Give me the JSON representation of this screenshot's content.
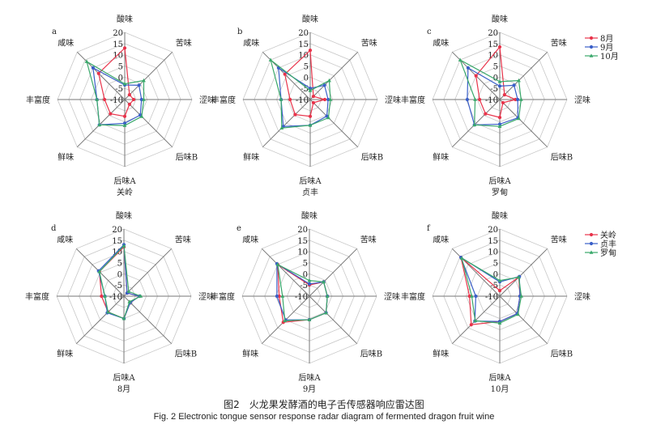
{
  "caption_cn": "图2　火龙果发酵酒的电子舌传感器响应雷达图",
  "caption_en": "Fig. 2 Electronic tongue sensor response radar diagram of fermented dragon fruit wine",
  "colors": {
    "red": "#e8334a",
    "blue": "#3a5fc8",
    "green": "#3aa86b"
  },
  "chart_data": [
    {
      "type": "radar",
      "panel": "a",
      "title": "关岭",
      "axes": [
        "酸味",
        "苦味",
        "涩味",
        "后味B",
        "后味A",
        "鲜味",
        "丰富度",
        "咸味"
      ],
      "range": [
        -10,
        20
      ],
      "ticks": [
        "-10",
        "-5",
        "0",
        "5",
        "10",
        "15",
        "20"
      ],
      "grid": true,
      "series": [
        {
          "name": "8月",
          "values": [
            13,
            -7,
            -6,
            -7,
            -2.5,
            -1,
            -1,
            6.5
          ]
        },
        {
          "name": "9月",
          "values": [
            -3.5,
            -1,
            -2.5,
            -0.2,
            0.6,
            6,
            2.4,
            10
          ]
        },
        {
          "name": "10月",
          "values": [
            -3,
            2,
            -1.5,
            0.7,
            1.6,
            6,
            2.4,
            14
          ]
        }
      ],
      "legend": "right"
    },
    {
      "type": "radar",
      "panel": "b",
      "title": "贞丰",
      "axes": [
        "酸味",
        "苦味",
        "涩味",
        "后味B",
        "后味A",
        "鲜味",
        "丰富度",
        "咸味"
      ],
      "range": [
        -10,
        20
      ],
      "ticks": [
        "-10",
        "-5",
        "0",
        "5",
        "10",
        "15",
        "20"
      ],
      "grid": true,
      "series": [
        {
          "name": "8月",
          "values": [
            12,
            -8,
            -3.5,
            -8,
            -2.5,
            -0.5,
            -1,
            6
          ]
        },
        {
          "name": "9月",
          "values": [
            -5,
            -1,
            -2,
            0.5,
            1.5,
            7,
            3,
            10
          ]
        },
        {
          "name": "10月",
          "values": [
            -6,
            2,
            -1,
            1.5,
            1.5,
            8,
            3,
            15
          ]
        }
      ]
    },
    {
      "type": "radar",
      "panel": "c",
      "title": "罗甸",
      "axes": [
        "酸味",
        "苦味",
        "涩味",
        "后味B",
        "后味A",
        "鲜味",
        "丰富度",
        "咸味"
      ],
      "range": [
        -10,
        20
      ],
      "ticks": [
        "-10",
        "-5",
        "0",
        "5",
        "10",
        "15",
        "20"
      ],
      "grid": true,
      "series": [
        {
          "name": "8月",
          "values": [
            13.5,
            -7,
            -3,
            -8,
            -2,
            -1,
            -1,
            5
          ]
        },
        {
          "name": "9月",
          "values": [
            -4,
            -1,
            -2,
            1.5,
            1,
            6,
            4.5,
            10
          ]
        },
        {
          "name": "10月",
          "values": [
            -2,
            2,
            -0.5,
            2,
            2,
            6,
            1,
            15
          ]
        }
      ]
    },
    {
      "type": "radar",
      "panel": "d",
      "title": "8月",
      "axes": [
        "酸味",
        "苦味",
        "涩味",
        "后味B",
        "后味A",
        "鲜味",
        "丰富度",
        "咸味"
      ],
      "range": [
        -10,
        20
      ],
      "ticks": [
        "-10",
        "-5",
        "0",
        "5",
        "10",
        "15",
        "20"
      ],
      "grid": true,
      "series": [
        {
          "name": "关岭",
          "values": [
            12,
            -8,
            -3,
            -6,
            0,
            0,
            0,
            5.5
          ]
        },
        {
          "name": "贞丰",
          "values": [
            13,
            -8,
            -3,
            -6,
            0,
            0.5,
            -1.5,
            6
          ]
        },
        {
          "name": "罗甸",
          "values": [
            12.5,
            -7,
            -2.5,
            -6.5,
            0,
            0,
            -1.5,
            5.5
          ]
        }
      ],
      "legend": "right"
    },
    {
      "type": "radar",
      "panel": "e",
      "title": "9月",
      "axes": [
        "酸味",
        "苦味",
        "涩味",
        "后味B",
        "后味A",
        "鲜味",
        "丰富度",
        "咸味"
      ],
      "range": [
        -10,
        20
      ],
      "ticks": [
        "-10",
        "-5",
        "0",
        "5",
        "10",
        "15",
        "20"
      ],
      "grid": true,
      "series": [
        {
          "name": "关岭",
          "values": [
            -5,
            -1,
            -2,
            0.5,
            0.5,
            6.5,
            3.5,
            10
          ]
        },
        {
          "name": "贞丰",
          "values": [
            -4.5,
            -1,
            -2,
            0.5,
            0.5,
            5,
            4.5,
            10.5
          ]
        },
        {
          "name": "罗甸",
          "values": [
            -3,
            -1,
            -2,
            0.5,
            0.5,
            5.5,
            2,
            10
          ]
        }
      ]
    },
    {
      "type": "radar",
      "panel": "f",
      "title": "10月",
      "axes": [
        "酸味",
        "苦味",
        "涩味",
        "后味B",
        "后味A",
        "鲜味",
        "丰富度",
        "咸味"
      ],
      "range": [
        -10,
        20
      ],
      "ticks": [
        "-10",
        "-5",
        "0",
        "5",
        "10",
        "15",
        "20"
      ],
      "grid": true,
      "series": [
        {
          "name": "关岭",
          "values": [
            -7.5,
            2,
            -1,
            1,
            1.3,
            8,
            3.5,
            14.5
          ]
        },
        {
          "name": "贞丰",
          "values": [
            -3.6,
            2.4,
            -1,
            1,
            1.3,
            5.7,
            0.7,
            14.5
          ]
        },
        {
          "name": "罗甸",
          "values": [
            -3,
            2,
            -0.4,
            1.5,
            2,
            5.5,
            2.5,
            14
          ]
        }
      ]
    }
  ]
}
